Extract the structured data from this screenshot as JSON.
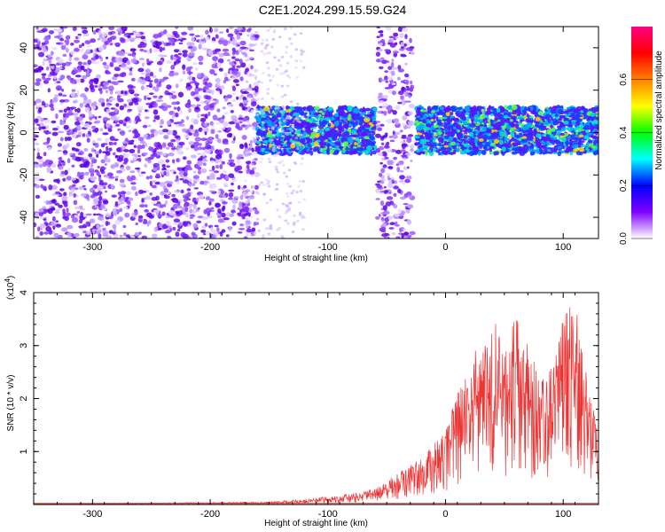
{
  "page": {
    "title": "C2E1.2024.299.15.59.G24"
  },
  "chart_data": [
    {
      "type": "heatmap",
      "xlabel": "Height of straight line (km)",
      "ylabel": "Frequency (Hz)",
      "xlim": [
        -350,
        130
      ],
      "ylim": [
        -50,
        50
      ],
      "x_ticks": [
        -300,
        -200,
        -100,
        0,
        100
      ],
      "y_ticks": [
        -40,
        -20,
        0,
        20,
        40
      ],
      "colorbar": {
        "label": "Normalized spectral amplitude",
        "range": [
          0,
          0.8
        ],
        "ticks": [
          "0.0",
          "0.2",
          "0.4",
          "0.6"
        ],
        "colormap": [
          "#ffffff",
          "#7f00ff",
          "#0000ff",
          "#00ffff",
          "#00ff00",
          "#ffff00",
          "#ff8000",
          "#ff0000",
          "#ff0080"
        ]
      },
      "regions": [
        {
          "x": [
            -350,
            -160
          ],
          "y": [
            -50,
            50
          ],
          "description_level": 0.08
        },
        {
          "x": [
            -160,
            -60
          ],
          "y": [
            -10,
            12
          ],
          "description_level": 0.3
        },
        {
          "x": [
            -58,
            -28
          ],
          "y": [
            -50,
            50
          ],
          "description_level": 0.08
        },
        {
          "x": [
            -25,
            130
          ],
          "y": [
            -10,
            12
          ],
          "description_level": 0.3
        }
      ],
      "grid": false
    },
    {
      "type": "line",
      "xlabel": "Height of straight line (km)",
      "ylabel": "SNR (10 * v/v)",
      "y_multiplier": "(x10",
      "y_multiplier_exp": "4",
      "y_multiplier_close": ")",
      "xlim": [
        -350,
        130
      ],
      "ylim": [
        0,
        4
      ],
      "x_ticks": [
        -300,
        -200,
        -100,
        0,
        100
      ],
      "y_ticks": [
        1,
        2,
        3,
        4
      ],
      "series": [
        {
          "color": "#ee3333",
          "envelope": [
            [
              -350,
              0.02
            ],
            [
              -300,
              0.02
            ],
            [
              -250,
              0.03
            ],
            [
              -200,
              0.04
            ],
            [
              -150,
              0.05
            ],
            [
              -120,
              0.1
            ],
            [
              -100,
              0.15
            ],
            [
              -80,
              0.2
            ],
            [
              -60,
              0.3
            ],
            [
              -40,
              0.6
            ],
            [
              -20,
              0.9
            ],
            [
              0,
              1.4
            ],
            [
              10,
              2.2
            ],
            [
              20,
              2.5
            ],
            [
              30,
              3.3
            ],
            [
              40,
              3.6
            ],
            [
              50,
              3.0
            ],
            [
              60,
              3.7
            ],
            [
              70,
              3.0
            ],
            [
              80,
              2.5
            ],
            [
              90,
              2.6
            ],
            [
              100,
              3.5
            ],
            [
              110,
              4.0
            ],
            [
              120,
              2.5
            ],
            [
              130,
              1.8
            ]
          ]
        }
      ],
      "grid": false
    }
  ]
}
